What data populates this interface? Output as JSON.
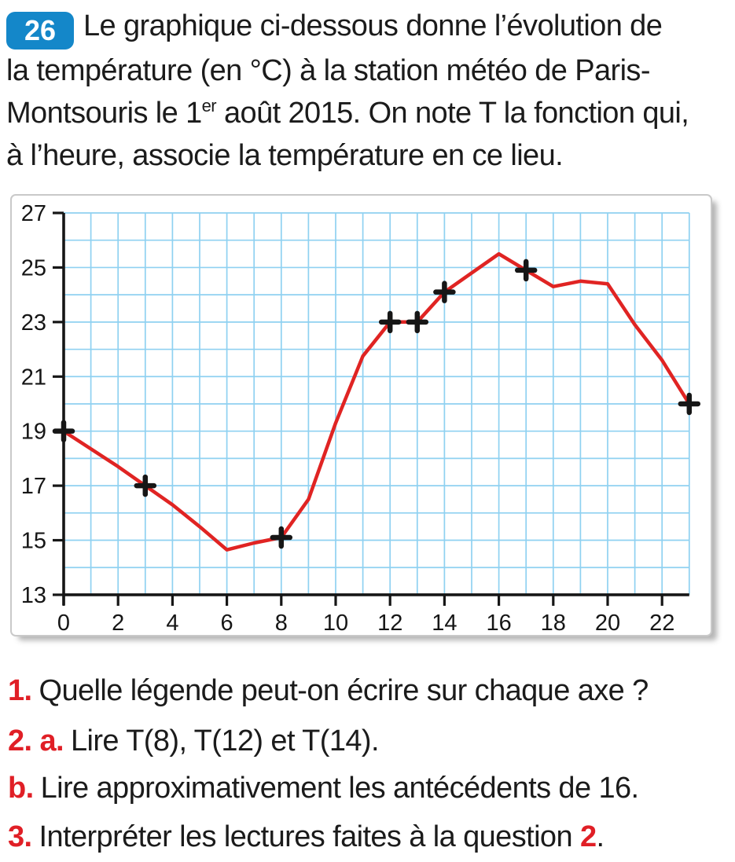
{
  "exercise": {
    "number": "26",
    "statement_line1": "Le graphique ci-dessous donne l’évolution de",
    "statement_line2": "la température (en °C) à la station météo de Paris-",
    "statement_line3_before_sup": "Montsouris le 1",
    "statement_line3_sup": "er",
    "statement_line3_after_sup": " août 2015. On note T la fonction qui,",
    "statement_line4": "à l’heure, associe la température en ce lieu."
  },
  "chart_data": {
    "type": "line",
    "title": "",
    "xlabel": "",
    "ylabel": "",
    "x": [
      0,
      1,
      2,
      3,
      4,
      5,
      6,
      7,
      8,
      9,
      10,
      11,
      12,
      13,
      14,
      15,
      16,
      17,
      18,
      19,
      20,
      21,
      22,
      23
    ],
    "y": [
      19,
      18.35,
      17.7,
      17,
      16.3,
      15.5,
      14.65,
      14.9,
      15.1,
      16.5,
      19.3,
      21.75,
      23,
      23,
      24.1,
      24.8,
      25.5,
      24.9,
      24.3,
      24.5,
      24.4,
      22.9,
      21.6,
      20
    ],
    "marked_points": [
      [
        0,
        19
      ],
      [
        3,
        17
      ],
      [
        8,
        15.1
      ],
      [
        12,
        23
      ],
      [
        13,
        23
      ],
      [
        14,
        24.1
      ],
      [
        17,
        24.9
      ],
      [
        23,
        20
      ]
    ],
    "xlim": [
      0,
      23
    ],
    "ylim": [
      13,
      27
    ],
    "xticks": [
      0,
      2,
      4,
      6,
      8,
      10,
      12,
      14,
      16,
      18,
      20,
      22
    ],
    "yticks": [
      13,
      15,
      17,
      19,
      21,
      23,
      25,
      27
    ],
    "grid": true,
    "grid_step_x": 1,
    "grid_step_y": 1,
    "legend_position": "none",
    "grid_color": "#8fd1f1",
    "line_color": "#e02423",
    "marker_color": "#161616",
    "axis_color": "#161616"
  },
  "questions": {
    "q1": {
      "num": "1.",
      "text": "Quelle légende peut-on écrire sur chaque axe ?"
    },
    "q2a": {
      "num": "2. a.",
      "text": "Lire T(8), T(12) et T(14)."
    },
    "q2b": {
      "num": "b.",
      "text": "Lire approximativement les antécédents de 16."
    },
    "q3": {
      "num": "3.",
      "text_before_ref": "Interpréter les lectures faites à la question ",
      "ref": "2",
      "suffix": "."
    }
  },
  "colors": {
    "badge_blue": "#1487c9",
    "number_red": "#e01f26",
    "text_ink": "#1b1b1b"
  }
}
